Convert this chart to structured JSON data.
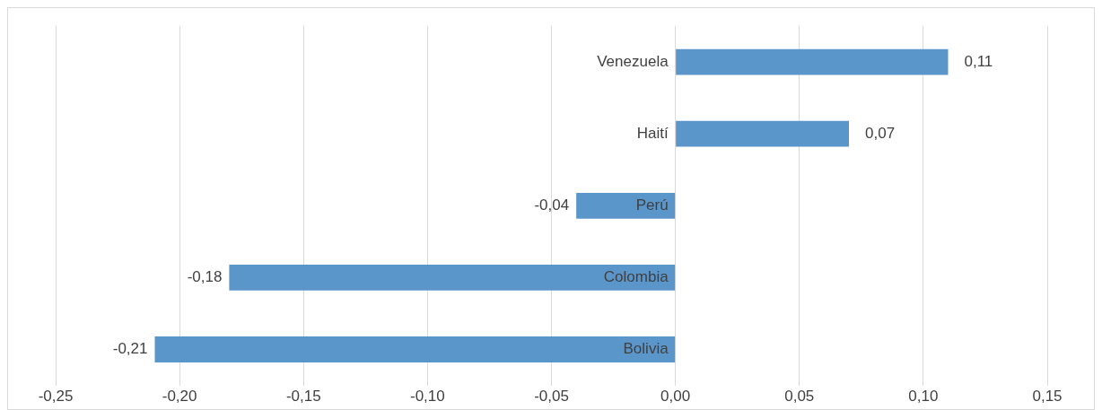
{
  "chart_data": {
    "type": "bar",
    "orientation": "horizontal",
    "categories": [
      "Venezuela",
      "Haití",
      "Perú",
      "Colombia",
      "Bolivia"
    ],
    "values": [
      0.11,
      0.07,
      -0.04,
      -0.18,
      -0.21
    ],
    "value_labels": [
      "0,11",
      "0,07",
      "-0,04",
      "-0,18",
      "-0,21"
    ],
    "color": "#5b96cb",
    "xlim": [
      -0.25,
      0.15
    ],
    "xticks": [
      {
        "value": -0.25,
        "label": "-0,25"
      },
      {
        "value": -0.2,
        "label": "-0,20"
      },
      {
        "value": -0.15,
        "label": "-0,15"
      },
      {
        "value": -0.1,
        "label": "-0,10"
      },
      {
        "value": -0.05,
        "label": "-0,05"
      },
      {
        "value": 0,
        "label": "0,00"
      },
      {
        "value": 0.05,
        "label": "0,05"
      },
      {
        "value": 0.1,
        "label": "0,10"
      },
      {
        "value": 0.15,
        "label": "0,15"
      }
    ],
    "grid": "x",
    "legend": false
  }
}
